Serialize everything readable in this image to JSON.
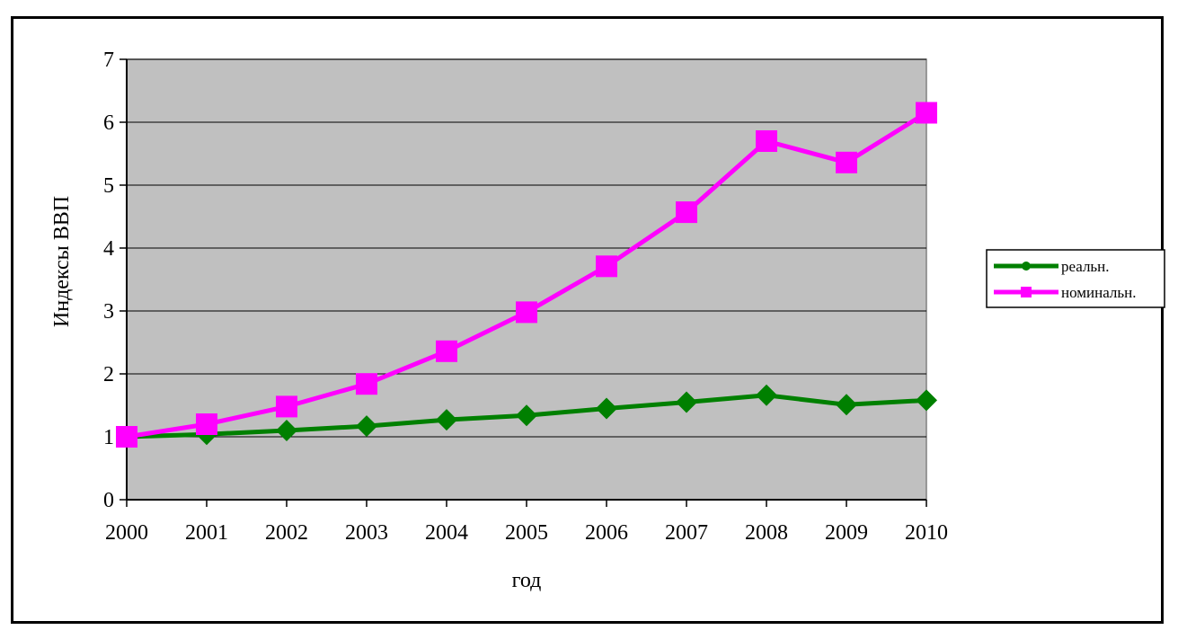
{
  "chart_data": {
    "type": "line",
    "title": "",
    "xlabel": "год",
    "ylabel": "Индексы ВВП",
    "x": [
      "2000",
      "2001",
      "2002",
      "2003",
      "2004",
      "2005",
      "2006",
      "2007",
      "2008",
      "2009",
      "2010"
    ],
    "ylim": [
      0,
      7
    ],
    "yticks": [
      "0",
      "1",
      "2",
      "3",
      "4",
      "5",
      "6",
      "7"
    ],
    "grid": true,
    "legend_position": "right",
    "plot_background": "#c0c0c0",
    "series": [
      {
        "name": "реальн.",
        "color": "#008000",
        "marker": "diamond",
        "values": [
          1.0,
          1.04,
          1.1,
          1.17,
          1.27,
          1.34,
          1.45,
          1.55,
          1.66,
          1.51,
          1.58
        ]
      },
      {
        "name": "номинальн.",
        "color": "#ff00ff",
        "marker": "square",
        "values": [
          1.0,
          1.2,
          1.48,
          1.84,
          2.36,
          2.98,
          3.71,
          4.57,
          5.7,
          5.36,
          6.15
        ]
      }
    ]
  }
}
